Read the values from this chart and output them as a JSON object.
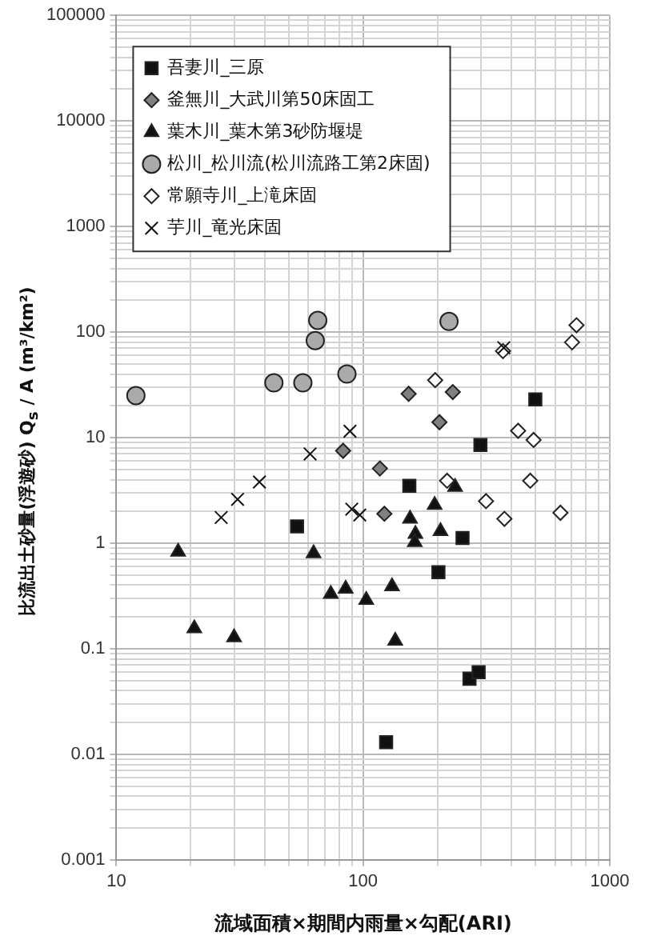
{
  "chart_data": {
    "type": "scatter",
    "xlabel": "流域面積×期間内雨量×勾配(ARI)",
    "ylabel": "比流出土砂量(浮遊砂) Q$_{s}$ / A (m³/km²)",
    "log": "xy",
    "grid": true,
    "legend": "top left",
    "xlim": [
      10,
      1000
    ],
    "xticks": [
      10,
      100,
      1000
    ],
    "ylim": [
      0.001,
      100000
    ],
    "yticks": [
      0.001,
      0.01,
      0.1,
      1,
      10,
      100,
      1000,
      10000,
      100000
    ],
    "series": [
      {
        "name": "吾妻川_三原",
        "color": "#111111",
        "marker": "square",
        "x": [
          54,
          154,
          299,
          499,
          253,
          202,
          124,
          270,
          294
        ],
        "values": [
          1.44,
          3.5,
          8.5,
          23,
          1.12,
          0.53,
          0.013,
          0.052,
          0.06
        ]
      },
      {
        "name": "釜無川_大武川第50床固工",
        "color": "#808080",
        "marker": "diamond",
        "x": [
          83,
          117,
          122,
          153,
          204,
          231
        ],
        "values": [
          7.5,
          5.1,
          1.9,
          26,
          14,
          27
        ]
      },
      {
        "name": "葉木川_葉木第3砂防堰堤",
        "color": "#111111",
        "marker": "triangle",
        "x": [
          17.8,
          63,
          155,
          163,
          162,
          195,
          206,
          236,
          20.7,
          30,
          74,
          85,
          103,
          131,
          135
        ],
        "values": [
          0.83,
          0.8,
          1.7,
          1.22,
          1.02,
          2.3,
          1.3,
          3.4,
          0.156,
          0.128,
          0.33,
          0.37,
          0.29,
          0.39,
          0.119
        ]
      },
      {
        "name": "松川_松川流(松川流路工第2床固)",
        "color": "#aaaaaa",
        "marker": "circle",
        "x": [
          12,
          43.5,
          57,
          64,
          65.5,
          86,
          223
        ],
        "values": [
          25,
          33,
          33,
          83,
          129,
          40,
          126
        ]
      },
      {
        "name": "常願寺川_上滝床固",
        "color": "#ffffff",
        "marker": "diamond",
        "x": [
          196,
          219,
          315,
          374,
          369,
          425,
          491,
          476,
          631,
          703,
          733
        ],
        "values": [
          35,
          3.9,
          2.5,
          1.7,
          66,
          11.6,
          9.5,
          3.9,
          1.94,
          80,
          116
        ]
      },
      {
        "name": "芋川_竜光床固",
        "color": "#111111",
        "marker": "cross",
        "x": [
          26.6,
          31,
          38,
          61,
          88.5,
          90,
          97,
          372
        ],
        "values": [
          1.75,
          2.6,
          3.8,
          7,
          11.5,
          2.1,
          1.85,
          71
        ]
      }
    ]
  }
}
